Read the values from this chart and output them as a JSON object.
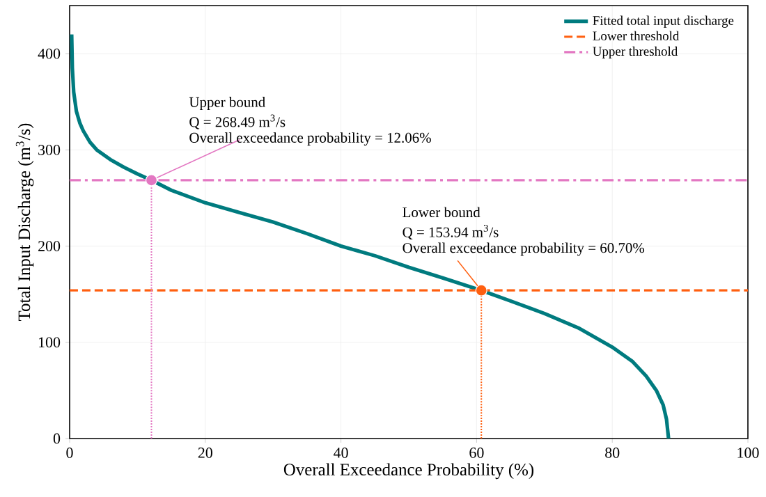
{
  "chart_data": {
    "type": "line",
    "xlabel": "Overall Exceedance Probability (%)",
    "ylabel": "Total Input Discharge (m$^{3}$/s)",
    "xlim": [
      0,
      100
    ],
    "ylim": [
      0,
      450
    ],
    "xticks": [
      0,
      20,
      40,
      60,
      80,
      100
    ],
    "yticks": [
      0,
      100,
      200,
      300,
      400
    ],
    "grid": true,
    "legend": "top right",
    "series": [
      {
        "name": "Fitted total input discharge",
        "color": "#007b7f",
        "x": [
          0.3,
          0.4,
          0.6,
          1,
          1.5,
          2,
          3,
          4,
          6,
          8,
          10,
          12.06,
          15,
          20,
          25,
          30,
          35,
          40,
          45,
          50,
          55,
          60.7,
          65,
          70,
          75,
          80,
          83,
          85,
          86.5,
          87.5,
          88,
          88.3
        ],
        "values": [
          420,
          385,
          360,
          340,
          328,
          320,
          308,
          300,
          290,
          282,
          275,
          268.49,
          258,
          245,
          235,
          225,
          213,
          200,
          190,
          178,
          167,
          153.94,
          143,
          130,
          115,
          95,
          80,
          65,
          50,
          35,
          20,
          0
        ]
      },
      {
        "type": "line",
        "line_style": "dotted",
        "color": "#e377c2",
        "x": [
          12.06,
          12.06
        ],
        "values": [
          0,
          268.49
        ]
      },
      {
        "type": "line",
        "line_style": "dotted",
        "color": "#ff5f0f",
        "x": [
          60.7,
          60.7
        ],
        "values": [
          0,
          153.94
        ]
      },
      {
        "type": "scatter",
        "marker": "circle",
        "color": "#e377c2",
        "x": [
          12.06
        ],
        "values": [
          268.49
        ]
      },
      {
        "type": "scatter",
        "marker": "circle",
        "color": "#ff5f0f",
        "x": [
          60.7
        ],
        "values": [
          153.94
        ]
      }
    ],
    "ref_lines": [
      {
        "axis": "y",
        "value": 153.94,
        "label": "Lower threshold",
        "color": "#ff5f0f",
        "line_style": "dashed"
      },
      {
        "axis": "y",
        "value": 268.49,
        "label": "Upper threshold",
        "color": "#e377c2",
        "line_style": "dashdot"
      }
    ],
    "annotations": [
      "Upper bound",
      "Q = 268.49 m$^{3}$/s",
      {
        "text": "Overall exceedance probability = 12.06%",
        "x": 12.06,
        "y": 268.49
      },
      "Lower bound",
      "Q = 153.94 m$^{3}$/s",
      {
        "text": "Overall exceedance probability = 60.70%",
        "x": 60.7,
        "y": 153.94
      }
    ]
  }
}
